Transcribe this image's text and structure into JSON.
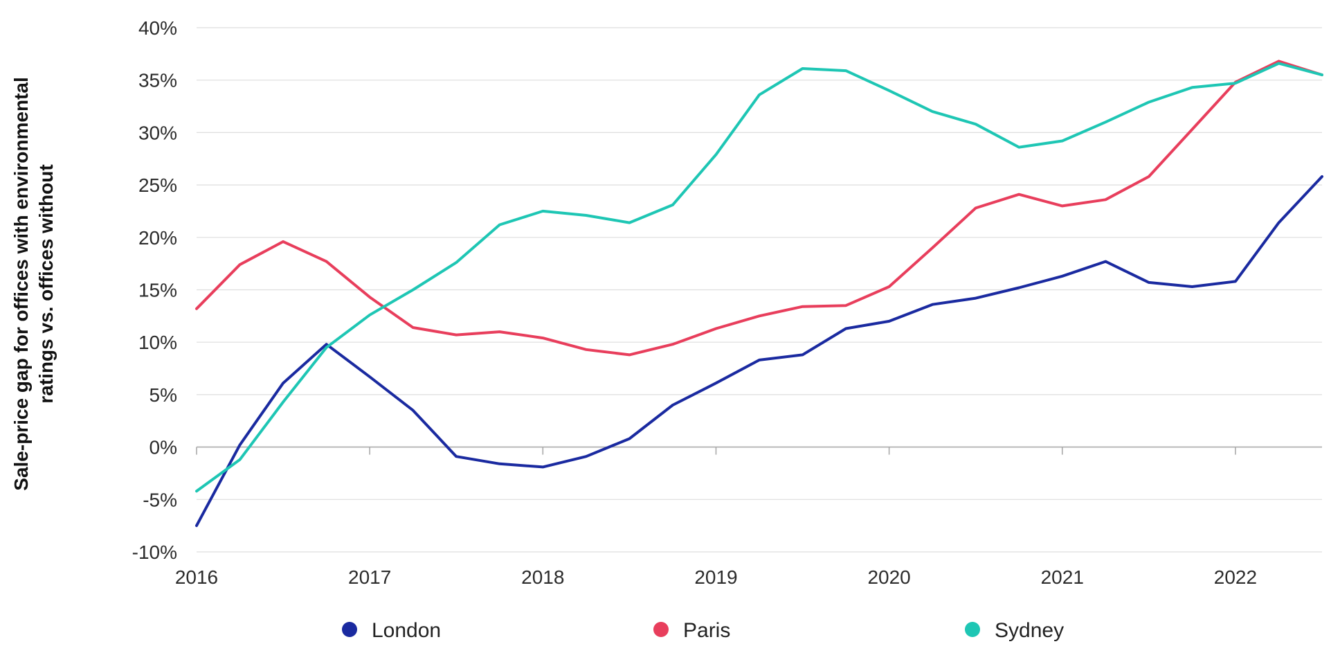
{
  "chart_data": {
    "type": "line",
    "title": "",
    "xlabel": "",
    "ylabel_lines": [
      "Sale-price gap for offices with environmental",
      "ratings vs. offices without"
    ],
    "xlim": [
      2016,
      2022.5
    ],
    "ylim": [
      -10,
      40
    ],
    "yticks": [
      -10,
      -5,
      0,
      5,
      10,
      15,
      20,
      25,
      30,
      35,
      40
    ],
    "ytick_labels": [
      "-10%",
      "-5%",
      "0%",
      "5%",
      "10%",
      "15%",
      "20%",
      "25%",
      "30%",
      "35%",
      "40%"
    ],
    "xticks": [
      2016,
      2017,
      2018,
      2019,
      2020,
      2021,
      2022
    ],
    "xtick_labels": [
      "2016",
      "2017",
      "2018",
      "2019",
      "2020",
      "2021",
      "2022"
    ],
    "grid": true,
    "legend_position": "bottom",
    "x": [
      2016,
      2016.25,
      2016.5,
      2016.75,
      2017,
      2017.25,
      2017.5,
      2017.75,
      2018,
      2018.25,
      2018.5,
      2018.75,
      2019,
      2019.25,
      2019.5,
      2019.75,
      2020,
      2020.25,
      2020.5,
      2020.75,
      2021,
      2021.25,
      2021.5,
      2021.75,
      2022,
      2022.25,
      2022.5
    ],
    "series": [
      {
        "name": "London",
        "color": "#1a2aa0",
        "values": [
          -7.5,
          0.2,
          6.1,
          9.8,
          6.7,
          3.5,
          -0.9,
          -1.6,
          -1.9,
          -0.9,
          0.8,
          4.0,
          6.1,
          8.3,
          8.8,
          11.3,
          12.0,
          13.6,
          14.2,
          15.2,
          16.3,
          17.7,
          15.7,
          15.3,
          15.8,
          21.4,
          25.8
        ]
      },
      {
        "name": "Paris",
        "color": "#e83e5c",
        "values": [
          13.2,
          17.4,
          19.6,
          17.7,
          14.3,
          11.4,
          10.7,
          11.0,
          10.4,
          9.3,
          8.8,
          9.8,
          11.3,
          12.5,
          13.4,
          13.5,
          15.3,
          19.0,
          22.8,
          24.1,
          23.0,
          23.6,
          25.8,
          30.3,
          34.8,
          36.8,
          35.5
        ]
      },
      {
        "name": "Sydney",
        "color": "#1ec6b4",
        "values": [
          -4.2,
          -1.2,
          4.3,
          9.5,
          12.6,
          15.0,
          17.6,
          21.2,
          22.5,
          22.1,
          21.4,
          23.1,
          27.9,
          33.6,
          36.1,
          35.9,
          34.0,
          32.0,
          30.8,
          28.6,
          29.2,
          31.0,
          32.9,
          34.3,
          34.7,
          36.6,
          35.5
        ]
      }
    ]
  }
}
